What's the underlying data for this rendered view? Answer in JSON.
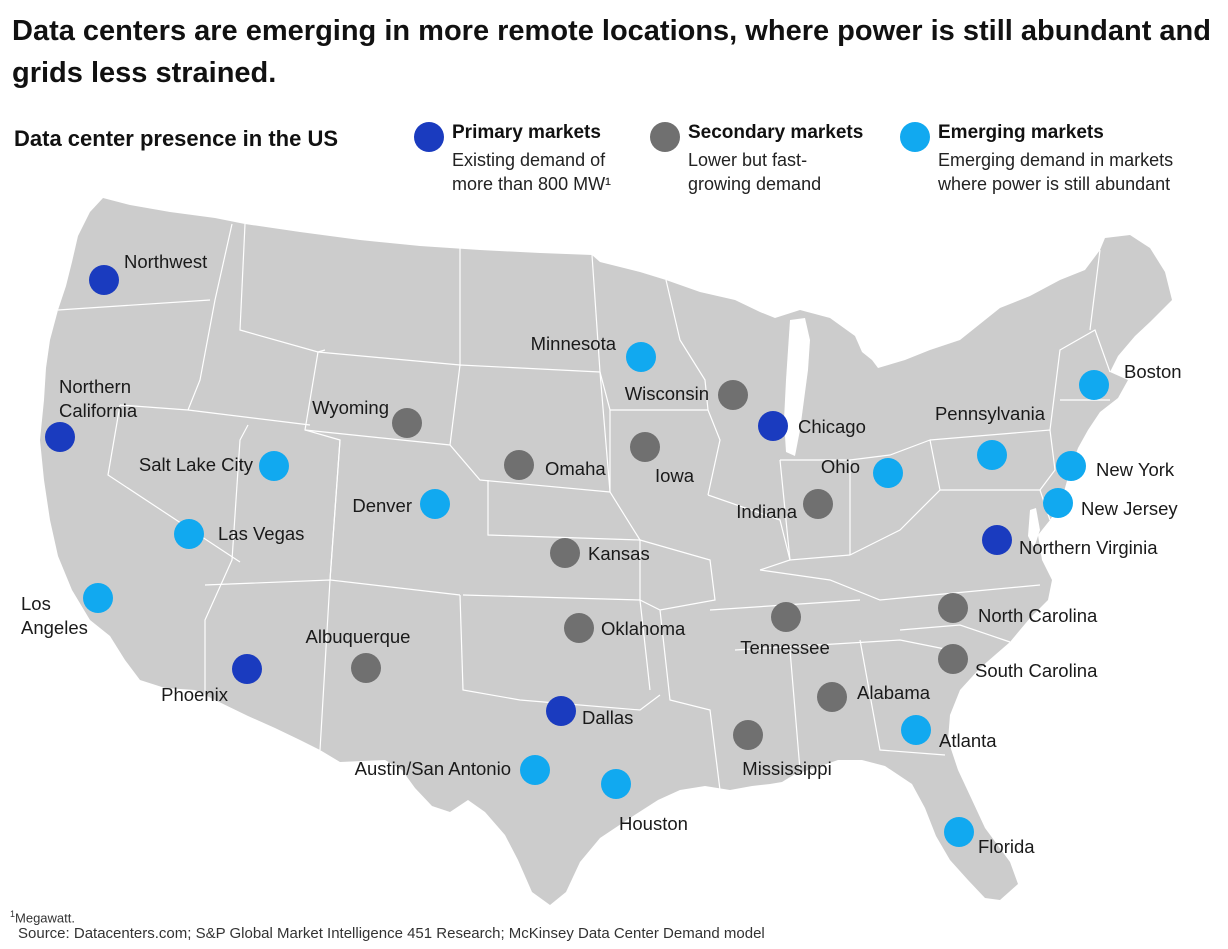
{
  "title": "Data centers are emerging in more remote locations, where power is still abundant and grids less strained.",
  "subtitle": "Data center presence in the US",
  "legend": [
    {
      "key": "primary",
      "name": "Primary markets",
      "desc": "Existing demand of\nmore than 800 MW¹",
      "color": "#1a3bbf"
    },
    {
      "key": "secondary",
      "name": "Secondary markets",
      "desc": "Lower but fast-\ngrowing demand",
      "color": "#707070"
    },
    {
      "key": "emerging",
      "name": "Emerging markets",
      "desc": "Emerging demand in markets\nwhere power is still abundant",
      "color": "#11a9f0"
    }
  ],
  "markets": [
    {
      "name": "Northwest",
      "type": "primary"
    },
    {
      "name": "Northern\nCalifornia",
      "type": "primary"
    },
    {
      "name": "Phoenix",
      "type": "primary"
    },
    {
      "name": "Dallas",
      "type": "primary"
    },
    {
      "name": "Chicago",
      "type": "primary"
    },
    {
      "name": "Northern Virginia",
      "type": "primary"
    },
    {
      "name": "Wyoming",
      "type": "secondary"
    },
    {
      "name": "Omaha",
      "type": "secondary"
    },
    {
      "name": "Iowa",
      "type": "secondary"
    },
    {
      "name": "Wisconsin",
      "type": "secondary"
    },
    {
      "name": "Kansas",
      "type": "secondary"
    },
    {
      "name": "Indiana",
      "type": "secondary"
    },
    {
      "name": "Oklahoma",
      "type": "secondary"
    },
    {
      "name": "Albuquerque",
      "type": "secondary"
    },
    {
      "name": "Tennessee",
      "type": "secondary"
    },
    {
      "name": "Alabama",
      "type": "secondary"
    },
    {
      "name": "Mississippi",
      "type": "secondary"
    },
    {
      "name": "North Carolina",
      "type": "secondary"
    },
    {
      "name": "South Carolina",
      "type": "secondary"
    },
    {
      "name": "Minnesota",
      "type": "emerging"
    },
    {
      "name": "Salt Lake City",
      "type": "emerging"
    },
    {
      "name": "Denver",
      "type": "emerging"
    },
    {
      "name": "Las Vegas",
      "type": "emerging"
    },
    {
      "name": "Los\nAngeles",
      "type": "emerging"
    },
    {
      "name": "Austin/San Antonio",
      "type": "emerging"
    },
    {
      "name": "Houston",
      "type": "emerging"
    },
    {
      "name": "Atlanta",
      "type": "emerging"
    },
    {
      "name": "Florida",
      "type": "emerging"
    },
    {
      "name": "Ohio",
      "type": "emerging"
    },
    {
      "name": "Pennsylvania",
      "type": "emerging"
    },
    {
      "name": "New York",
      "type": "emerging"
    },
    {
      "name": "New Jersey",
      "type": "emerging"
    },
    {
      "name": "Boston",
      "type": "emerging"
    }
  ],
  "footnote": {
    "marker": "1",
    "text": "Megawatt."
  },
  "source": "Source: Datacenters.com; S&P Global Market Intelligence 451 Research; McKinsey Data Center Demand model",
  "map_color": "#cccccc"
}
